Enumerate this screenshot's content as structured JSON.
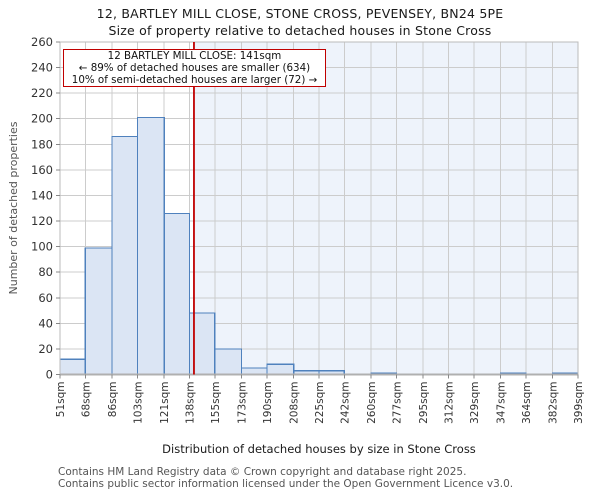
{
  "title": "12, BARTLEY MILL CLOSE, STONE CROSS, PEVENSEY, BN24 5PE",
  "subtitle": "Size of property relative to detached houses in Stone Cross",
  "annotation": {
    "line1": "12 BARTLEY MILL CLOSE: 141sqm",
    "line2": "← 89% of detached houses are smaller (634)",
    "line3": "10% of semi-detached houses are larger (72) →"
  },
  "footer": {
    "line1": "Contains HM Land Registry data © Crown copyright and database right 2025.",
    "line2": "Contains public sector information licensed under the Open Government Licence v3.0."
  },
  "chart_data": {
    "type": "bar",
    "title": "12, BARTLEY MILL CLOSE, STONE CROSS, PEVENSEY, BN24 5PE",
    "subtitle": "Size of property relative to detached houses in Stone Cross",
    "xlabel": "Distribution of detached houses by size in Stone Cross",
    "ylabel": "Number of detached properties",
    "bin_edges_sqm": [
      51,
      68,
      86,
      103,
      121,
      138,
      155,
      173,
      190,
      208,
      225,
      242,
      260,
      277,
      295,
      312,
      329,
      347,
      364,
      382,
      399
    ],
    "x_tick_suffix": "sqm",
    "values": [
      12,
      99,
      186,
      201,
      126,
      48,
      20,
      5,
      8,
      3,
      3,
      0,
      1,
      0,
      0,
      0,
      0,
      1,
      0,
      1
    ],
    "marker_value_sqm": 141,
    "ylim": [
      0,
      260
    ],
    "y_tick_step": 20,
    "grid": "on",
    "colors": {
      "bar_fill": "#dbe5f4",
      "bar_edge": "#4f81bd",
      "marker_line": "#c00000",
      "larger_region_shade": "#eef3fb",
      "gridline": "#cccccc",
      "frame": "#bbbbbb",
      "axis_bottom": "#b0b0b0",
      "tick": "#888888",
      "tick_label": "#333333"
    }
  }
}
